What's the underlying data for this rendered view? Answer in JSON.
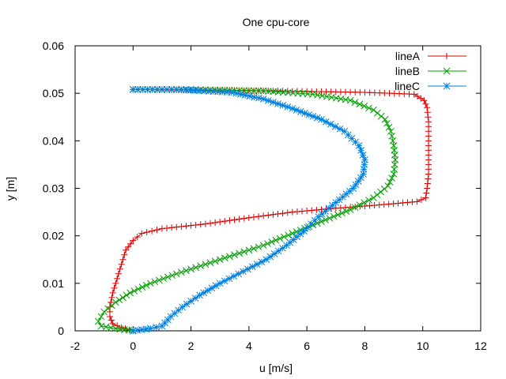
{
  "chart_data": {
    "type": "line",
    "title": "One cpu-core",
    "xlabel": "u [m/s]",
    "ylabel": "y [m]",
    "xlim": [
      -2,
      12
    ],
    "ylim": [
      0,
      0.06
    ],
    "xticks": [
      "-2",
      "0",
      "2",
      "4",
      "6",
      "8",
      "10",
      "12"
    ],
    "yticks": [
      "0",
      "0.01",
      "0.02",
      "0.03",
      "0.04",
      "0.05",
      "0.06"
    ],
    "grid": false,
    "legend_position": "top-right",
    "series": [
      {
        "name": "lineA",
        "color": "#dd0000",
        "marker": "plus",
        "points": [
          [
            0.0,
            0.0
          ],
          [
            -0.4,
            0.0007
          ],
          [
            -0.7,
            0.0015
          ],
          [
            -0.8,
            0.003
          ],
          [
            -0.8,
            0.005
          ],
          [
            -0.7,
            0.008
          ],
          [
            -0.55,
            0.011
          ],
          [
            -0.4,
            0.014
          ],
          [
            -0.25,
            0.017
          ],
          [
            0.0,
            0.019
          ],
          [
            0.3,
            0.0205
          ],
          [
            1.0,
            0.0215
          ],
          [
            2.5,
            0.0225
          ],
          [
            4.0,
            0.0238
          ],
          [
            5.5,
            0.025
          ],
          [
            7.0,
            0.0258
          ],
          [
            8.5,
            0.0265
          ],
          [
            9.8,
            0.0272
          ],
          [
            10.1,
            0.028
          ],
          [
            10.15,
            0.03
          ],
          [
            10.2,
            0.033
          ],
          [
            10.2,
            0.036
          ],
          [
            10.2,
            0.04
          ],
          [
            10.2,
            0.044
          ],
          [
            10.15,
            0.047
          ],
          [
            10.05,
            0.0485
          ],
          [
            9.7,
            0.0498
          ],
          [
            8.0,
            0.0502
          ],
          [
            5.0,
            0.0505
          ],
          [
            2.0,
            0.0507
          ],
          [
            0.0,
            0.0508
          ]
        ]
      },
      {
        "name": "lineB",
        "color": "#00a000",
        "marker": "cross",
        "points": [
          [
            0.0,
            0.0
          ],
          [
            -0.6,
            0.0005
          ],
          [
            -1.1,
            0.001
          ],
          [
            -1.2,
            0.002
          ],
          [
            -1.0,
            0.004
          ],
          [
            -0.6,
            0.006
          ],
          [
            -0.1,
            0.008
          ],
          [
            0.6,
            0.01
          ],
          [
            1.5,
            0.012
          ],
          [
            2.5,
            0.014
          ],
          [
            3.5,
            0.016
          ],
          [
            4.5,
            0.018
          ],
          [
            5.5,
            0.0205
          ],
          [
            6.5,
            0.023
          ],
          [
            7.5,
            0.0255
          ],
          [
            8.3,
            0.028
          ],
          [
            8.8,
            0.0305
          ],
          [
            9.0,
            0.033
          ],
          [
            9.05,
            0.036
          ],
          [
            9.0,
            0.039
          ],
          [
            8.9,
            0.042
          ],
          [
            8.7,
            0.0445
          ],
          [
            8.3,
            0.0465
          ],
          [
            7.5,
            0.0485
          ],
          [
            6.2,
            0.0498
          ],
          [
            4.5,
            0.0505
          ],
          [
            2.0,
            0.0508
          ],
          [
            0.0,
            0.0508
          ]
        ]
      },
      {
        "name": "lineC",
        "color": "#0080e0",
        "marker": "star",
        "points": [
          [
            0.0,
            0.0
          ],
          [
            0.6,
            0.0005
          ],
          [
            1.0,
            0.001
          ],
          [
            1.3,
            0.003
          ],
          [
            1.7,
            0.005
          ],
          [
            2.3,
            0.0075
          ],
          [
            3.0,
            0.01
          ],
          [
            3.8,
            0.0125
          ],
          [
            4.6,
            0.015
          ],
          [
            5.3,
            0.018
          ],
          [
            5.9,
            0.021
          ],
          [
            6.4,
            0.024
          ],
          [
            7.0,
            0.027
          ],
          [
            7.6,
            0.03
          ],
          [
            7.95,
            0.033
          ],
          [
            8.0,
            0.036
          ],
          [
            7.8,
            0.039
          ],
          [
            7.3,
            0.042
          ],
          [
            6.5,
            0.0445
          ],
          [
            5.5,
            0.0468
          ],
          [
            4.5,
            0.0488
          ],
          [
            3.4,
            0.0502
          ],
          [
            1.5,
            0.0508
          ],
          [
            0.0,
            0.0508
          ]
        ]
      }
    ]
  }
}
